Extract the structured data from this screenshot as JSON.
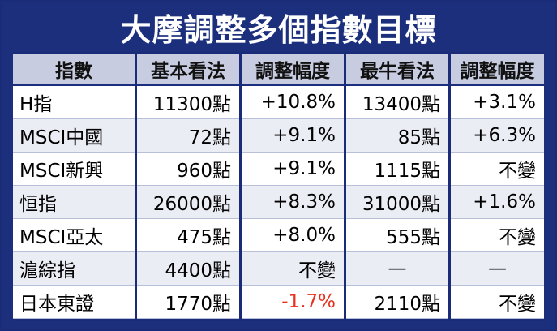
{
  "title": "大摩調整多個指數目標",
  "headers": [
    "指數",
    "基本看法",
    "調整幅度",
    "最牛看法",
    "調整幅度"
  ],
  "rows": [
    {
      "name": "H指",
      "base": "11300點",
      "base_adj": "+10.8%",
      "bull": "13400點",
      "bull_adj": "+3.1%"
    },
    {
      "name": "MSCI中國",
      "base": "72點",
      "base_adj": "+9.1%",
      "bull": "85點",
      "bull_adj": "+6.3%"
    },
    {
      "name": "MSCI新興",
      "base": "960點",
      "base_adj": "+9.1%",
      "bull": "1115點",
      "bull_adj": "不變"
    },
    {
      "name": "恒指",
      "base": "26000點",
      "base_adj": "+8.3%",
      "bull": "31000點",
      "bull_adj": "+1.6%"
    },
    {
      "name": "MSCI亞太",
      "base": "475點",
      "base_adj": "+8.0%",
      "bull": "555點",
      "bull_adj": "不變"
    },
    {
      "name": "滬綜指",
      "base": "4400點",
      "base_adj": "不變",
      "bull": "—",
      "bull_adj": "—"
    },
    {
      "name": "日本東證",
      "base": "1770點",
      "base_adj": "-1.7%",
      "bull": "2110點",
      "bull_adj": "不變"
    }
  ],
  "colors": {
    "title_bg": "#1c2f7d",
    "header_bg": "#c7cce0",
    "alt_row_bg": "#ebedf5",
    "negative": "#e8301e"
  }
}
